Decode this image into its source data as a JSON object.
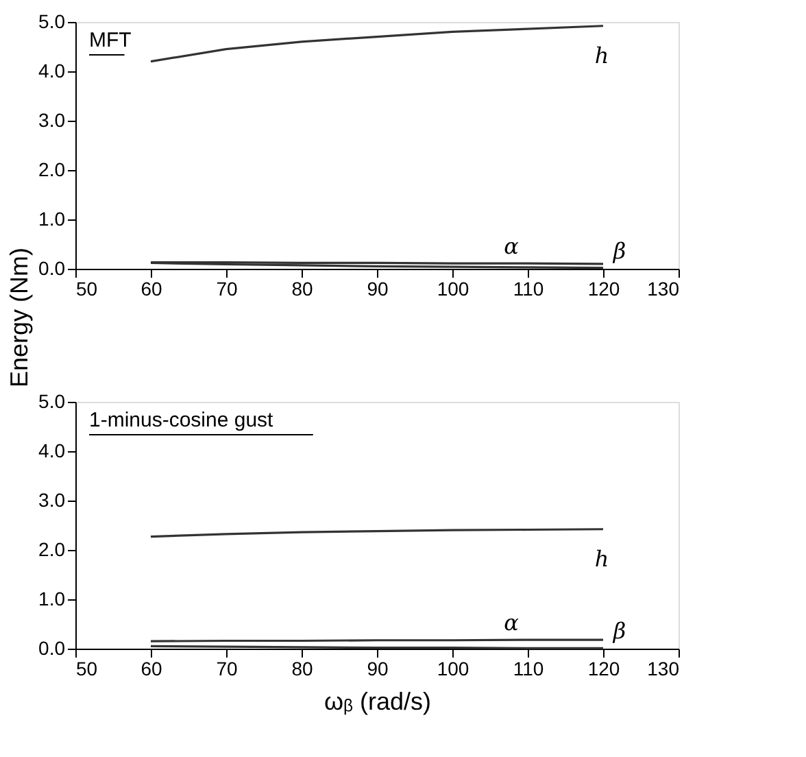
{
  "chart_data": [
    {
      "type": "line",
      "annotations": [
        "MFT"
      ],
      "ylabel": "Energy (Nm)",
      "x": [
        60,
        70,
        80,
        90,
        100,
        110,
        120
      ],
      "series": [
        {
          "name": "h",
          "color": "#333333",
          "values": [
            4.2,
            4.45,
            4.6,
            4.7,
            4.8,
            4.86,
            4.92
          ]
        },
        {
          "name": "α",
          "color": "#333333",
          "values": [
            0.13,
            0.13,
            0.12,
            0.12,
            0.11,
            0.11,
            0.1
          ]
        },
        {
          "name": "β",
          "color": "#333333",
          "values": [
            0.12,
            0.09,
            0.07,
            0.05,
            0.04,
            0.03,
            0.02
          ]
        }
      ],
      "xlim": [
        50,
        130
      ],
      "xticks": [
        50,
        60,
        70,
        80,
        90,
        100,
        110,
        120,
        130
      ],
      "ylim": [
        0,
        5
      ],
      "yticks": [
        {
          "value": 0,
          "label": "0.0"
        },
        {
          "value": 1,
          "label": "1.0"
        },
        {
          "value": 2,
          "label": "2.0"
        },
        {
          "value": 3,
          "label": "3.0"
        },
        {
          "value": 4,
          "label": "4.0"
        },
        {
          "value": 5,
          "label": "5.0"
        }
      ],
      "grid": false,
      "legend": false
    },
    {
      "type": "line",
      "annotations": [
        "1-minus-cosine gust"
      ],
      "xlabel": "ωᵦ (rad/s)",
      "x": [
        60,
        70,
        80,
        90,
        100,
        110,
        120
      ],
      "series": [
        {
          "name": "h",
          "color": "#333333",
          "values": [
            2.27,
            2.32,
            2.36,
            2.38,
            2.4,
            2.41,
            2.42
          ]
        },
        {
          "name": "α",
          "color": "#333333",
          "values": [
            0.15,
            0.16,
            0.16,
            0.17,
            0.17,
            0.18,
            0.18
          ]
        },
        {
          "name": "β",
          "color": "#333333",
          "values": [
            0.05,
            0.04,
            0.03,
            0.02,
            0.02,
            0.01,
            0.01
          ]
        }
      ],
      "xlim": [
        50,
        130
      ],
      "xticks": [
        50,
        60,
        70,
        80,
        90,
        100,
        110,
        120,
        130
      ],
      "ylim": [
        0,
        5
      ],
      "yticks": [
        {
          "value": 0,
          "label": "0.0"
        },
        {
          "value": 1,
          "label": "1.0"
        },
        {
          "value": 2,
          "label": "2.0"
        },
        {
          "value": 3,
          "label": "3.0"
        },
        {
          "value": 4,
          "label": "4.0"
        },
        {
          "value": 5,
          "label": "5.0"
        }
      ],
      "grid": false,
      "legend": false
    }
  ]
}
